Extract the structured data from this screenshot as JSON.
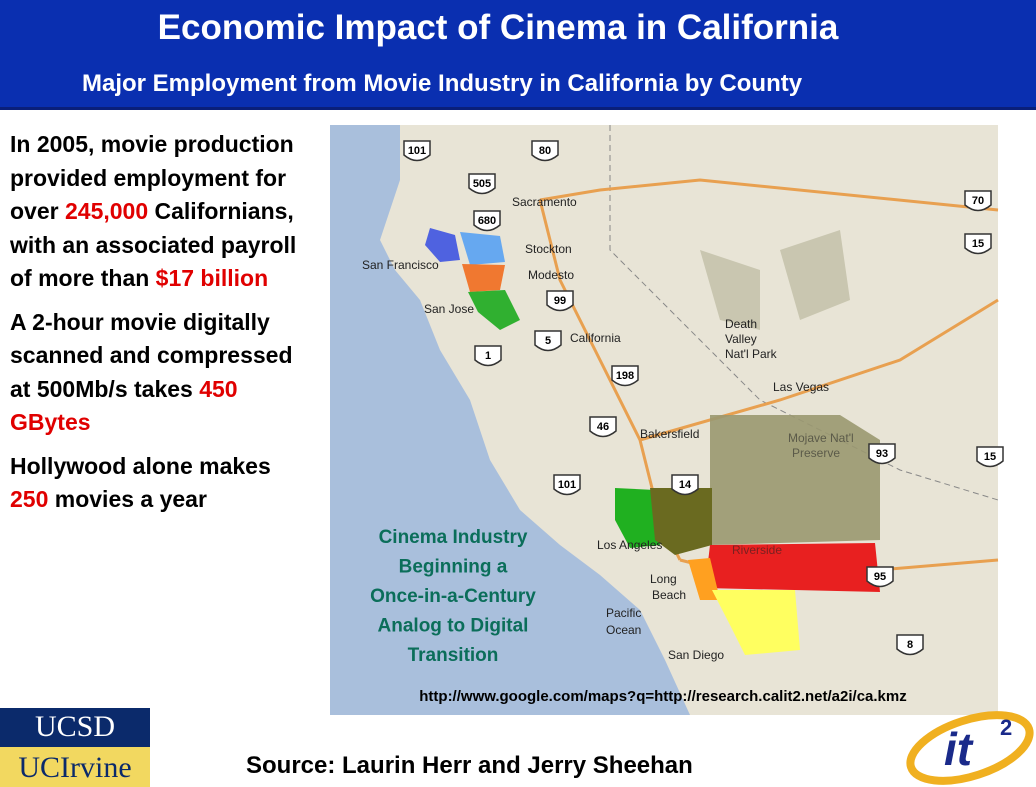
{
  "header": {
    "title": "Economic Impact of Cinema in California",
    "subtitle": "Major Employment from Movie Industry in California by County"
  },
  "body": {
    "paragraphs": [
      [
        {
          "text": "In 2005, movie production provided employment for over "
        },
        {
          "text": "245,000",
          "emphasis": true
        },
        {
          "text": " Californians, with an associated payroll of more than "
        },
        {
          "text": "$17 billion",
          "emphasis": true
        }
      ],
      [
        {
          "text": "A 2-hour movie digitally scanned and compressed at 500Mb/s takes "
        },
        {
          "text": "450 GBytes",
          "emphasis": true
        }
      ],
      [
        {
          "text": "Hollywood alone makes "
        },
        {
          "text": "250",
          "emphasis": true
        },
        {
          "text": " movies a year"
        }
      ]
    ]
  },
  "map": {
    "labels": [
      "Sacramento",
      "Stockton",
      "Modesto",
      "San Francisco",
      "San Jose",
      "California",
      "Death",
      "Valley",
      "Nat'l Park",
      "Las Vegas",
      "Bakersfield",
      "Los Angeles",
      "Long",
      "Beach",
      "Pacific",
      "Ocean",
      "San Diego",
      "Riverside",
      "Mojave Nat'l",
      "Preserve"
    ],
    "shields": [
      "101",
      "505",
      "80",
      "680",
      "99",
      "5",
      "1",
      "198",
      "46",
      "101",
      "14",
      "70",
      "15",
      "93",
      "95",
      "15",
      "8"
    ],
    "overlay": [
      "Cinema Industry",
      "Beginning a",
      "Once-in-a-Century",
      "Analog to Digital",
      "Transition"
    ],
    "url": "http://www.google.com/maps?q=http://research.calit2.net/a2i/ca.kmz"
  },
  "footer": {
    "source": "Source: Laurin Herr and Jerry Sheehan",
    "logos": [
      "UCSD",
      "UCIrvine",
      "it",
      "2"
    ]
  }
}
